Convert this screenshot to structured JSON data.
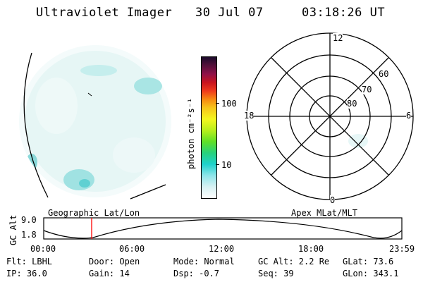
{
  "header": {
    "instrument": "Ultraviolet Imager",
    "date": "30 Jul 07",
    "time": "03:18:26 UT"
  },
  "colorbar": {
    "unit_label": "photon cm⁻²s⁻¹",
    "ticks": [
      "100",
      "10"
    ]
  },
  "polar_plot": {
    "mlt_labels": {
      "top": "12",
      "left": "18",
      "right": "6",
      "bottom": "0"
    },
    "lat_labels": [
      "60",
      "70",
      "80"
    ]
  },
  "labels": {
    "geographic": "Geographic Lat/Lon",
    "apex": "Apex MLat/MLT"
  },
  "altitude_plot": {
    "ylabel": "GC Alt",
    "ytick_high": "9.0",
    "ytick_low": "1.8",
    "time_ticks": [
      "00:00",
      "06:00",
      "12:00",
      "18:00",
      "23:59"
    ],
    "marker_color": "#ff0000"
  },
  "info": {
    "flt": "Flt: LBHL",
    "ip": "IP: 36.0",
    "door": "Door: Open",
    "gain": "Gain: 14",
    "mode": "Mode: Normal",
    "dsp": "Dsp:   -0.7",
    "gc_alt": "GC Alt: 2.2 Re",
    "seq": "Seq: 39",
    "glat": "GLat:  73.6",
    "glon": "GLon: 343.1"
  }
}
